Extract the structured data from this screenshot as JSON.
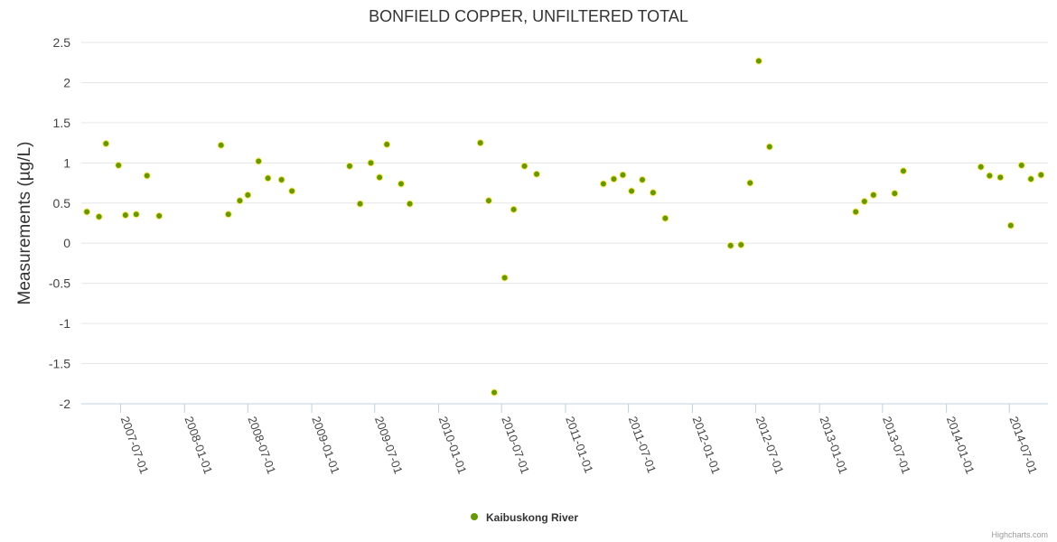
{
  "chart_data": {
    "type": "scatter",
    "title": "BONFIELD COPPER, UNFILTERED TOTAL",
    "ylabel": "Measurements (µg/L)",
    "xlabel": "",
    "ylim": [
      -2,
      2.5
    ],
    "yticks": [
      "2.5",
      "2",
      "1.5",
      "1",
      "0.5",
      "0",
      "-0.5",
      "-1",
      "-1.5",
      "-2"
    ],
    "xticks": [
      "2007-07-01",
      "2008-01-01",
      "2008-07-01",
      "2009-01-01",
      "2009-07-01",
      "2010-01-01",
      "2010-07-01",
      "2011-01-01",
      "2011-07-01",
      "2012-01-01",
      "2012-07-01",
      "2013-01-01",
      "2013-07-01",
      "2014-01-01",
      "2014-07-01"
    ],
    "xlim": [
      "2007-03-10",
      "2014-10-20"
    ],
    "grid": true,
    "legend_position": "bottom-center",
    "series": [
      {
        "name": "Kaibuskong River",
        "color": "#669900",
        "points": [
          [
            "2007-03-26",
            0.39
          ],
          [
            "2007-04-30",
            0.33
          ],
          [
            "2007-05-20",
            1.24
          ],
          [
            "2007-06-25",
            0.97
          ],
          [
            "2007-07-15",
            0.35
          ],
          [
            "2007-08-15",
            0.36
          ],
          [
            "2007-09-15",
            0.84
          ],
          [
            "2007-10-20",
            0.34
          ],
          [
            "2008-04-15",
            1.22
          ],
          [
            "2008-05-06",
            0.36
          ],
          [
            "2008-06-08",
            0.53
          ],
          [
            "2008-07-01",
            0.6
          ],
          [
            "2008-08-01",
            1.02
          ],
          [
            "2008-08-28",
            0.81
          ],
          [
            "2008-10-06",
            0.79
          ],
          [
            "2008-11-05",
            0.65
          ],
          [
            "2009-04-20",
            0.96
          ],
          [
            "2009-05-20",
            0.49
          ],
          [
            "2009-06-20",
            1.0
          ],
          [
            "2009-07-15",
            0.82
          ],
          [
            "2009-08-05",
            1.23
          ],
          [
            "2009-09-15",
            0.74
          ],
          [
            "2009-10-10",
            0.49
          ],
          [
            "2010-05-01",
            1.25
          ],
          [
            "2010-05-25",
            0.53
          ],
          [
            "2010-06-10",
            -1.86
          ],
          [
            "2010-07-10",
            -0.43
          ],
          [
            "2010-08-05",
            0.42
          ],
          [
            "2010-09-05",
            0.96
          ],
          [
            "2010-10-10",
            0.86
          ],
          [
            "2011-04-20",
            0.74
          ],
          [
            "2011-05-20",
            0.8
          ],
          [
            "2011-06-15",
            0.85
          ],
          [
            "2011-07-10",
            0.65
          ],
          [
            "2011-08-10",
            0.79
          ],
          [
            "2011-09-10",
            0.63
          ],
          [
            "2011-10-15",
            0.31
          ],
          [
            "2012-04-20",
            -0.03
          ],
          [
            "2012-05-20",
            -0.02
          ],
          [
            "2012-06-15",
            0.75
          ],
          [
            "2012-07-10",
            2.27
          ],
          [
            "2012-08-10",
            1.2
          ],
          [
            "2013-04-15",
            0.39
          ],
          [
            "2013-05-10",
            0.52
          ],
          [
            "2013-06-05",
            0.6
          ],
          [
            "2013-08-05",
            0.62
          ],
          [
            "2013-08-30",
            0.9
          ],
          [
            "2014-04-10",
            0.95
          ],
          [
            "2014-05-05",
            0.84
          ],
          [
            "2014-06-05",
            0.82
          ],
          [
            "2014-07-05",
            0.22
          ],
          [
            "2014-08-05",
            0.97
          ],
          [
            "2014-09-01",
            0.8
          ],
          [
            "2014-09-30",
            0.85
          ]
        ]
      }
    ],
    "credits": "Highcharts.com"
  }
}
